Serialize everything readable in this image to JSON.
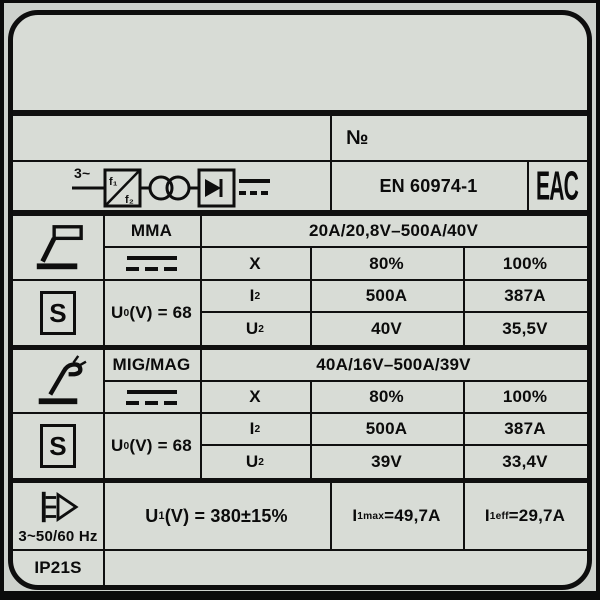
{
  "colors": {
    "plate_background": "#d8dcd6",
    "margin_background": "#cdd1cc",
    "line_color": "#101010",
    "text_color": "#0b0b0b"
  },
  "header": {
    "serial_label": "№",
    "standard": "EN 60974-1",
    "cert_mark": "EAC",
    "supply_phase_label": "3~",
    "f1_label": "f₁",
    "f2_label": "f₂"
  },
  "icons": {
    "power_source": "three-phase frequency-converter transformer rectifier with DC output",
    "dc_output": "direct current (solid over dashed line)",
    "mma": "manual metal arc welding electrode",
    "mig": "MIG/MAG welding torch",
    "s_mark": "S in box (hazardous environment rating)",
    "mains_input": "three-phase mains plug"
  },
  "processes": [
    {
      "name": "MMA",
      "range": "20A/20,8V–500A/40V",
      "s_mark": "S",
      "ocv_html": "U<sub>0</sub> (V) = 68",
      "duty_label": "X",
      "duty": [
        "80%",
        "100%"
      ],
      "i2_label_html": "I<sub>2</sub>",
      "currents": [
        "500A",
        "387A"
      ],
      "u2_label_html": "U<sub>2</sub>",
      "voltages": [
        "40V",
        "35,5V"
      ]
    },
    {
      "name": "MIG/MAG",
      "range": "40A/16V–500A/39V",
      "s_mark": "S",
      "ocv_html": "U<sub>0</sub> (V) = 68",
      "duty_label": "X",
      "duty": [
        "80%",
        "100%"
      ],
      "i2_label_html": "I<sub>2</sub>",
      "currents": [
        "500A",
        "387A"
      ],
      "u2_label_html": "U<sub>2</sub>",
      "voltages": [
        "39V",
        "33,4V"
      ]
    }
  ],
  "mains": {
    "frequency": "3~50/60 Hz",
    "u1_html": "U<sub>1</sub> (V) = 380±15%",
    "i1max_html": "I<sub>1max</sub>=49,7A",
    "i1eff_html": "I<sub>1eff</sub>=29,7A",
    "ip_rating": "IP21S"
  }
}
